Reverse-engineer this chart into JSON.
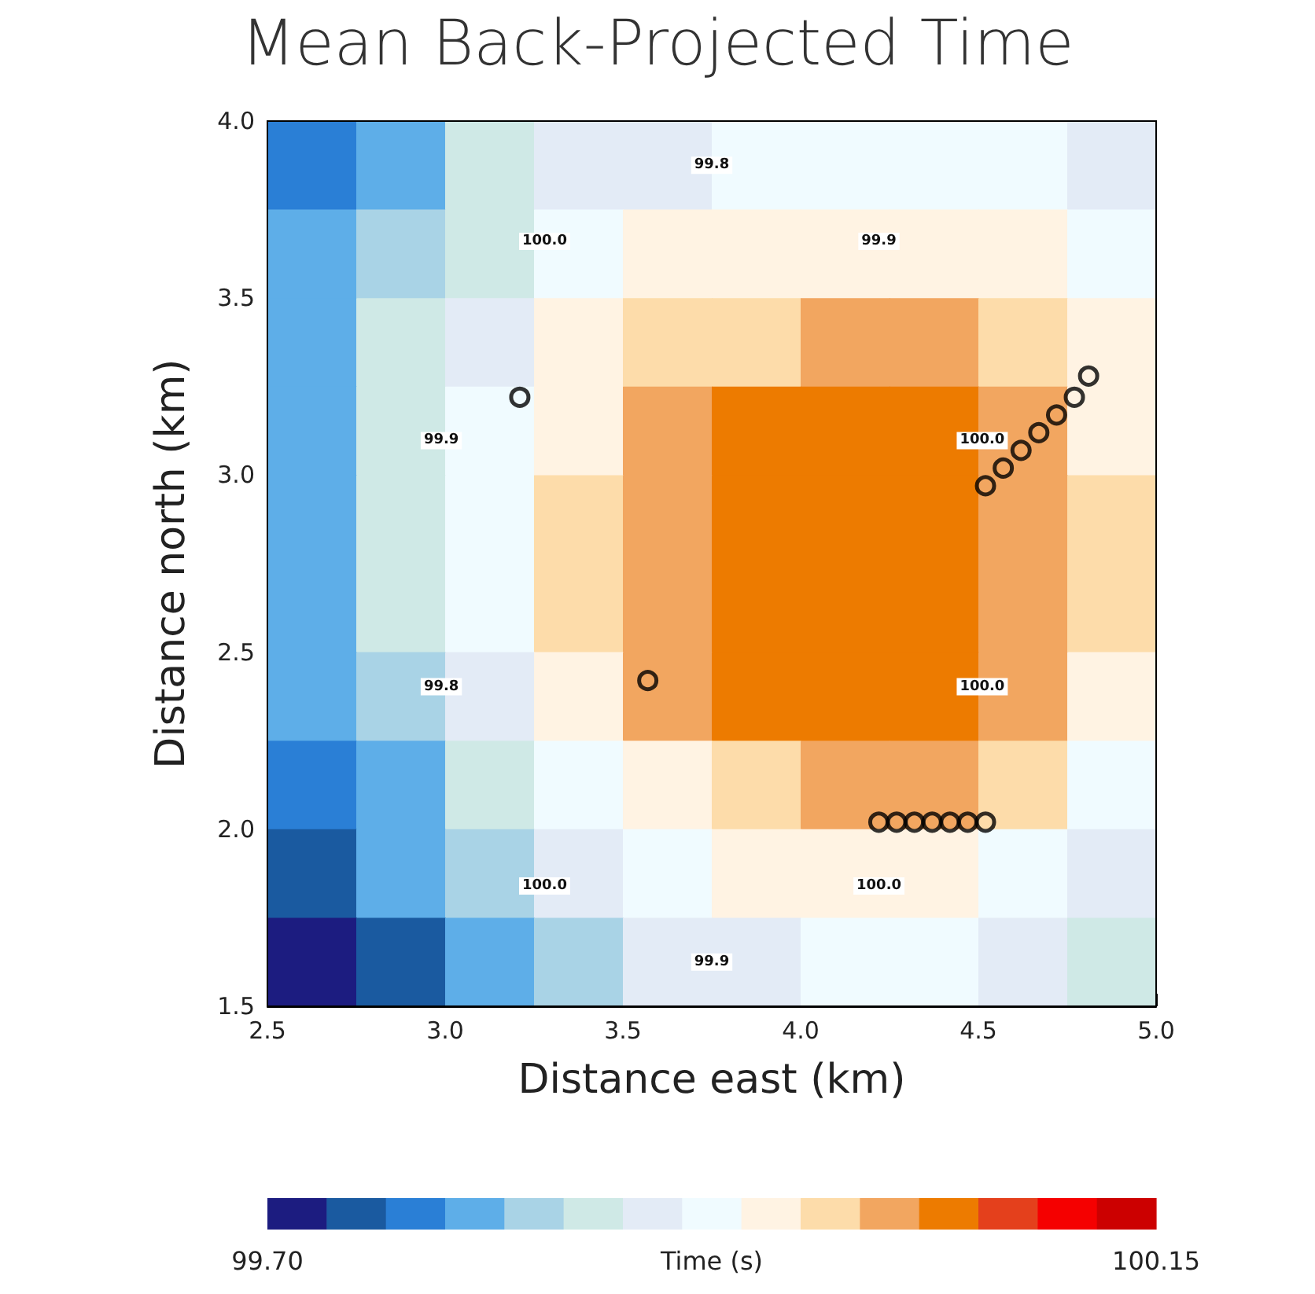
{
  "chart_data": {
    "type": "heatmap",
    "title": "Mean Back-Projected Time",
    "xlabel": "Distance east (km)",
    "ylabel": "Distance north (km)",
    "clabel": "Time (s)",
    "x": [
      2.625,
      2.875,
      3.125,
      3.375,
      3.625,
      3.875,
      4.125,
      4.375,
      4.625,
      4.875
    ],
    "cells": [
      [
        99.77,
        99.82,
        99.86,
        99.89,
        99.91,
        99.92,
        99.93,
        99.93,
        99.92,
        99.9
      ],
      [
        99.79,
        99.84,
        99.88,
        99.92,
        99.95,
        99.96,
        99.97,
        99.97,
        99.96,
        99.93
      ],
      [
        99.81,
        99.86,
        99.91,
        99.95,
        99.98,
        100.0,
        100.01,
        100.01,
        100.0,
        99.96
      ],
      [
        99.82,
        99.87,
        99.93,
        99.97,
        100.01,
        100.04,
        100.05,
        100.05,
        100.02,
        99.97
      ],
      [
        99.82,
        99.88,
        99.93,
        99.98,
        100.02,
        100.05,
        100.06,
        100.06,
        100.03,
        99.98
      ],
      [
        99.81,
        99.87,
        99.93,
        99.98,
        100.02,
        100.05,
        100.06,
        100.06,
        100.03,
        99.98
      ],
      [
        99.79,
        99.85,
        99.91,
        99.96,
        100.01,
        100.04,
        100.05,
        100.05,
        100.01,
        99.96
      ],
      [
        99.76,
        99.82,
        99.88,
        99.93,
        99.97,
        100.0,
        100.02,
        100.01,
        99.98,
        99.93
      ],
      [
        99.73,
        99.79,
        99.84,
        99.89,
        99.93,
        99.95,
        99.96,
        99.96,
        99.94,
        99.9
      ],
      [
        99.7,
        99.75,
        99.8,
        99.85,
        99.89,
        99.91,
        99.92,
        99.92,
        99.9,
        99.87
      ]
    ],
    "colors": [
      "#1c1c80",
      "#1a5aa0",
      "#2a7fd6",
      "#5eaee8",
      "#a9d3e6",
      "#cfe9e6",
      "#e3ebf6",
      "#f0fbff",
      "#fff3e3",
      "#fddcaa",
      "#f2a660",
      "#ed7b00",
      "#e4401c",
      "#f50000",
      "#cc0000"
    ],
    "clim": [
      99.7,
      100.15
    ],
    "cticks": [
      {
        "value": 99.7,
        "label": "99.70"
      },
      {
        "value": 100.15,
        "label": "100.15"
      }
    ],
    "xlim": [
      2.5,
      5.0
    ],
    "xticks": [
      {
        "value": 2.5,
        "label": "2.5"
      },
      {
        "value": 3,
        "label": "3.0"
      },
      {
        "value": 3.5,
        "label": "3.5"
      },
      {
        "value": 4,
        "label": "4.0"
      },
      {
        "value": 4.5,
        "label": "4.5"
      },
      {
        "value": 5,
        "label": "5.0"
      }
    ],
    "ylim": [
      1.5,
      4.0
    ],
    "yticks": [
      {
        "value": 1.5,
        "label": "1.5"
      },
      {
        "value": 2,
        "label": "2.0"
      },
      {
        "value": 2.5,
        "label": "2.5"
      },
      {
        "value": 3,
        "label": "3.0"
      },
      {
        "value": 3.5,
        "label": "3.5"
      },
      {
        "value": 4,
        "label": "4.0"
      }
    ],
    "series": [
      {
        "type": "scatter",
        "marker": "circle",
        "color": "#000000",
        "x": [
          3.21,
          3.57,
          4.22,
          4.27,
          4.32,
          4.37,
          4.42,
          4.47,
          4.52,
          4.52,
          4.57,
          4.62,
          4.67,
          4.72,
          4.77,
          4.81
        ],
        "values": [
          3.22,
          2.42,
          2.02,
          2.02,
          2.02,
          2.02,
          2.02,
          2.02,
          2.02,
          2.97,
          3.02,
          3.07,
          3.12,
          3.17,
          3.22,
          3.28
        ]
      }
    ],
    "annotations": [
      "99.8",
      "99.9",
      "100.0",
      "100.0",
      "100.0",
      "99.9",
      "100.0",
      "99.8",
      "99.9",
      "100.0"
    ]
  }
}
